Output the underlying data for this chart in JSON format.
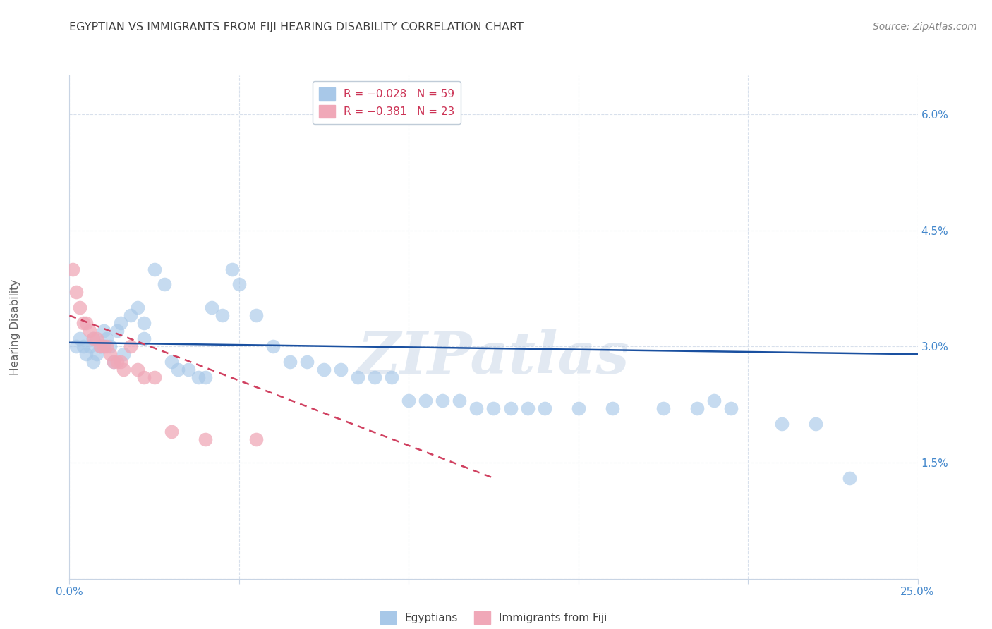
{
  "title": "EGYPTIAN VS IMMIGRANTS FROM FIJI HEARING DISABILITY CORRELATION CHART",
  "source": "Source: ZipAtlas.com",
  "ylabel": "Hearing Disability",
  "xlim": [
    0.0,
    0.25
  ],
  "ylim": [
    0.0,
    0.065
  ],
  "watermark": "ZIPatlas",
  "blue_color": "#a8c8e8",
  "pink_color": "#f0a8b8",
  "blue_line_color": "#1a50a0",
  "pink_line_color": "#d04060",
  "title_color": "#404040",
  "axis_color": "#4488cc",
  "grid_color": "#d8e0ec",
  "background_color": "#ffffff",
  "title_fontsize": 11.5,
  "ylabel_fontsize": 11,
  "tick_fontsize": 11,
  "source_fontsize": 10,
  "legend_fontsize": 11,
  "eg_x": [
    0.002,
    0.003,
    0.004,
    0.005,
    0.006,
    0.007,
    0.007,
    0.008,
    0.009,
    0.01,
    0.01,
    0.011,
    0.012,
    0.013,
    0.014,
    0.015,
    0.016,
    0.018,
    0.02,
    0.022,
    0.022,
    0.025,
    0.028,
    0.03,
    0.032,
    0.035,
    0.038,
    0.04,
    0.042,
    0.045,
    0.048,
    0.05,
    0.055,
    0.06,
    0.065,
    0.07,
    0.075,
    0.08,
    0.085,
    0.09,
    0.095,
    0.1,
    0.105,
    0.11,
    0.115,
    0.12,
    0.125,
    0.13,
    0.135,
    0.14,
    0.15,
    0.16,
    0.175,
    0.185,
    0.19,
    0.195,
    0.21,
    0.22,
    0.23
  ],
  "eg_y": [
    0.03,
    0.031,
    0.03,
    0.029,
    0.03,
    0.028,
    0.031,
    0.029,
    0.03,
    0.03,
    0.032,
    0.031,
    0.03,
    0.028,
    0.032,
    0.033,
    0.029,
    0.034,
    0.035,
    0.031,
    0.033,
    0.04,
    0.038,
    0.028,
    0.027,
    0.027,
    0.026,
    0.026,
    0.035,
    0.034,
    0.04,
    0.038,
    0.034,
    0.03,
    0.028,
    0.028,
    0.027,
    0.027,
    0.026,
    0.026,
    0.026,
    0.023,
    0.023,
    0.023,
    0.023,
    0.022,
    0.022,
    0.022,
    0.022,
    0.022,
    0.022,
    0.022,
    0.022,
    0.022,
    0.023,
    0.022,
    0.02,
    0.02,
    0.013
  ],
  "fj_x": [
    0.001,
    0.002,
    0.003,
    0.004,
    0.005,
    0.006,
    0.007,
    0.008,
    0.009,
    0.01,
    0.011,
    0.012,
    0.013,
    0.014,
    0.015,
    0.016,
    0.018,
    0.02,
    0.022,
    0.025,
    0.03,
    0.04,
    0.055
  ],
  "fj_y": [
    0.04,
    0.037,
    0.035,
    0.033,
    0.033,
    0.032,
    0.031,
    0.031,
    0.03,
    0.03,
    0.03,
    0.029,
    0.028,
    0.028,
    0.028,
    0.027,
    0.03,
    0.027,
    0.026,
    0.026,
    0.019,
    0.018,
    0.018
  ],
  "eg_line_x0": 0.0,
  "eg_line_x1": 0.25,
  "eg_line_y0": 0.0305,
  "eg_line_y1": 0.029,
  "fj_line_x0": 0.0,
  "fj_line_x1": 0.125,
  "fj_line_y0": 0.034,
  "fj_line_y1": 0.013
}
